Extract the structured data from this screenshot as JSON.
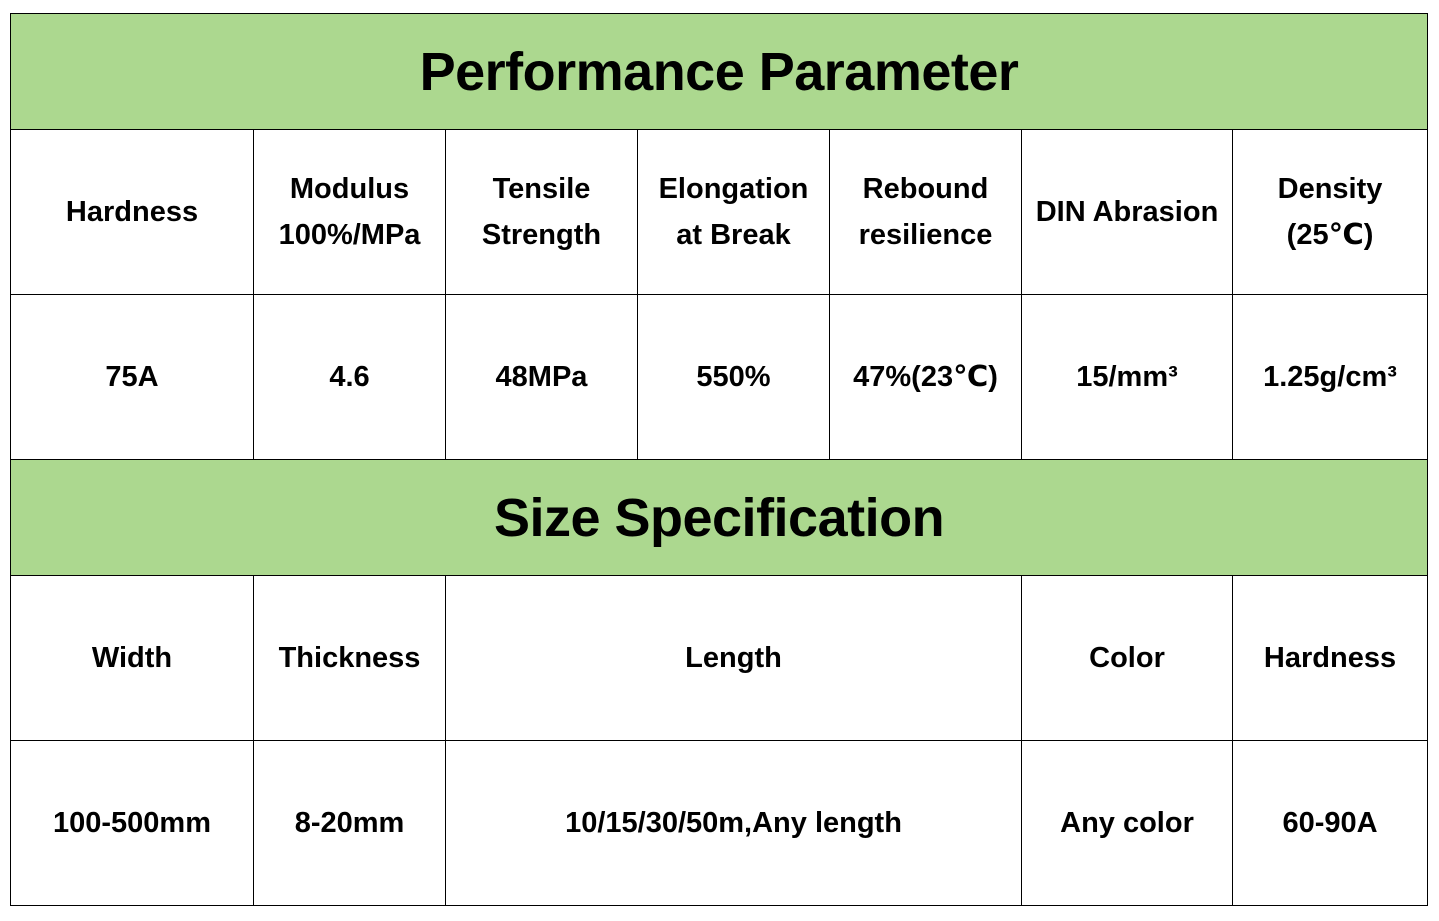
{
  "colors": {
    "header_fill": "#acd88f",
    "border": "#000000"
  },
  "performance": {
    "title": "Performance Parameter",
    "headers": [
      "Hardness",
      "Modulus\n100%/MPa",
      "Tensile\nStrength",
      "Elongation\nat Break",
      "Rebound\nresilience",
      "DIN Abrasion",
      "Density\n(25℃)"
    ],
    "values": [
      "75A",
      "4.6",
      "48MPa",
      "550%",
      "47%(23℃)",
      "15/mm³",
      "1.25g/cm³"
    ]
  },
  "size": {
    "title": "Size Specification",
    "headers": [
      "Width",
      "Thickness",
      "Length",
      "Color",
      "Hardness"
    ],
    "values": [
      "100-500mm",
      "8-20mm",
      "10/15/30/50m,Any length",
      "Any color",
      "60-90A"
    ]
  }
}
